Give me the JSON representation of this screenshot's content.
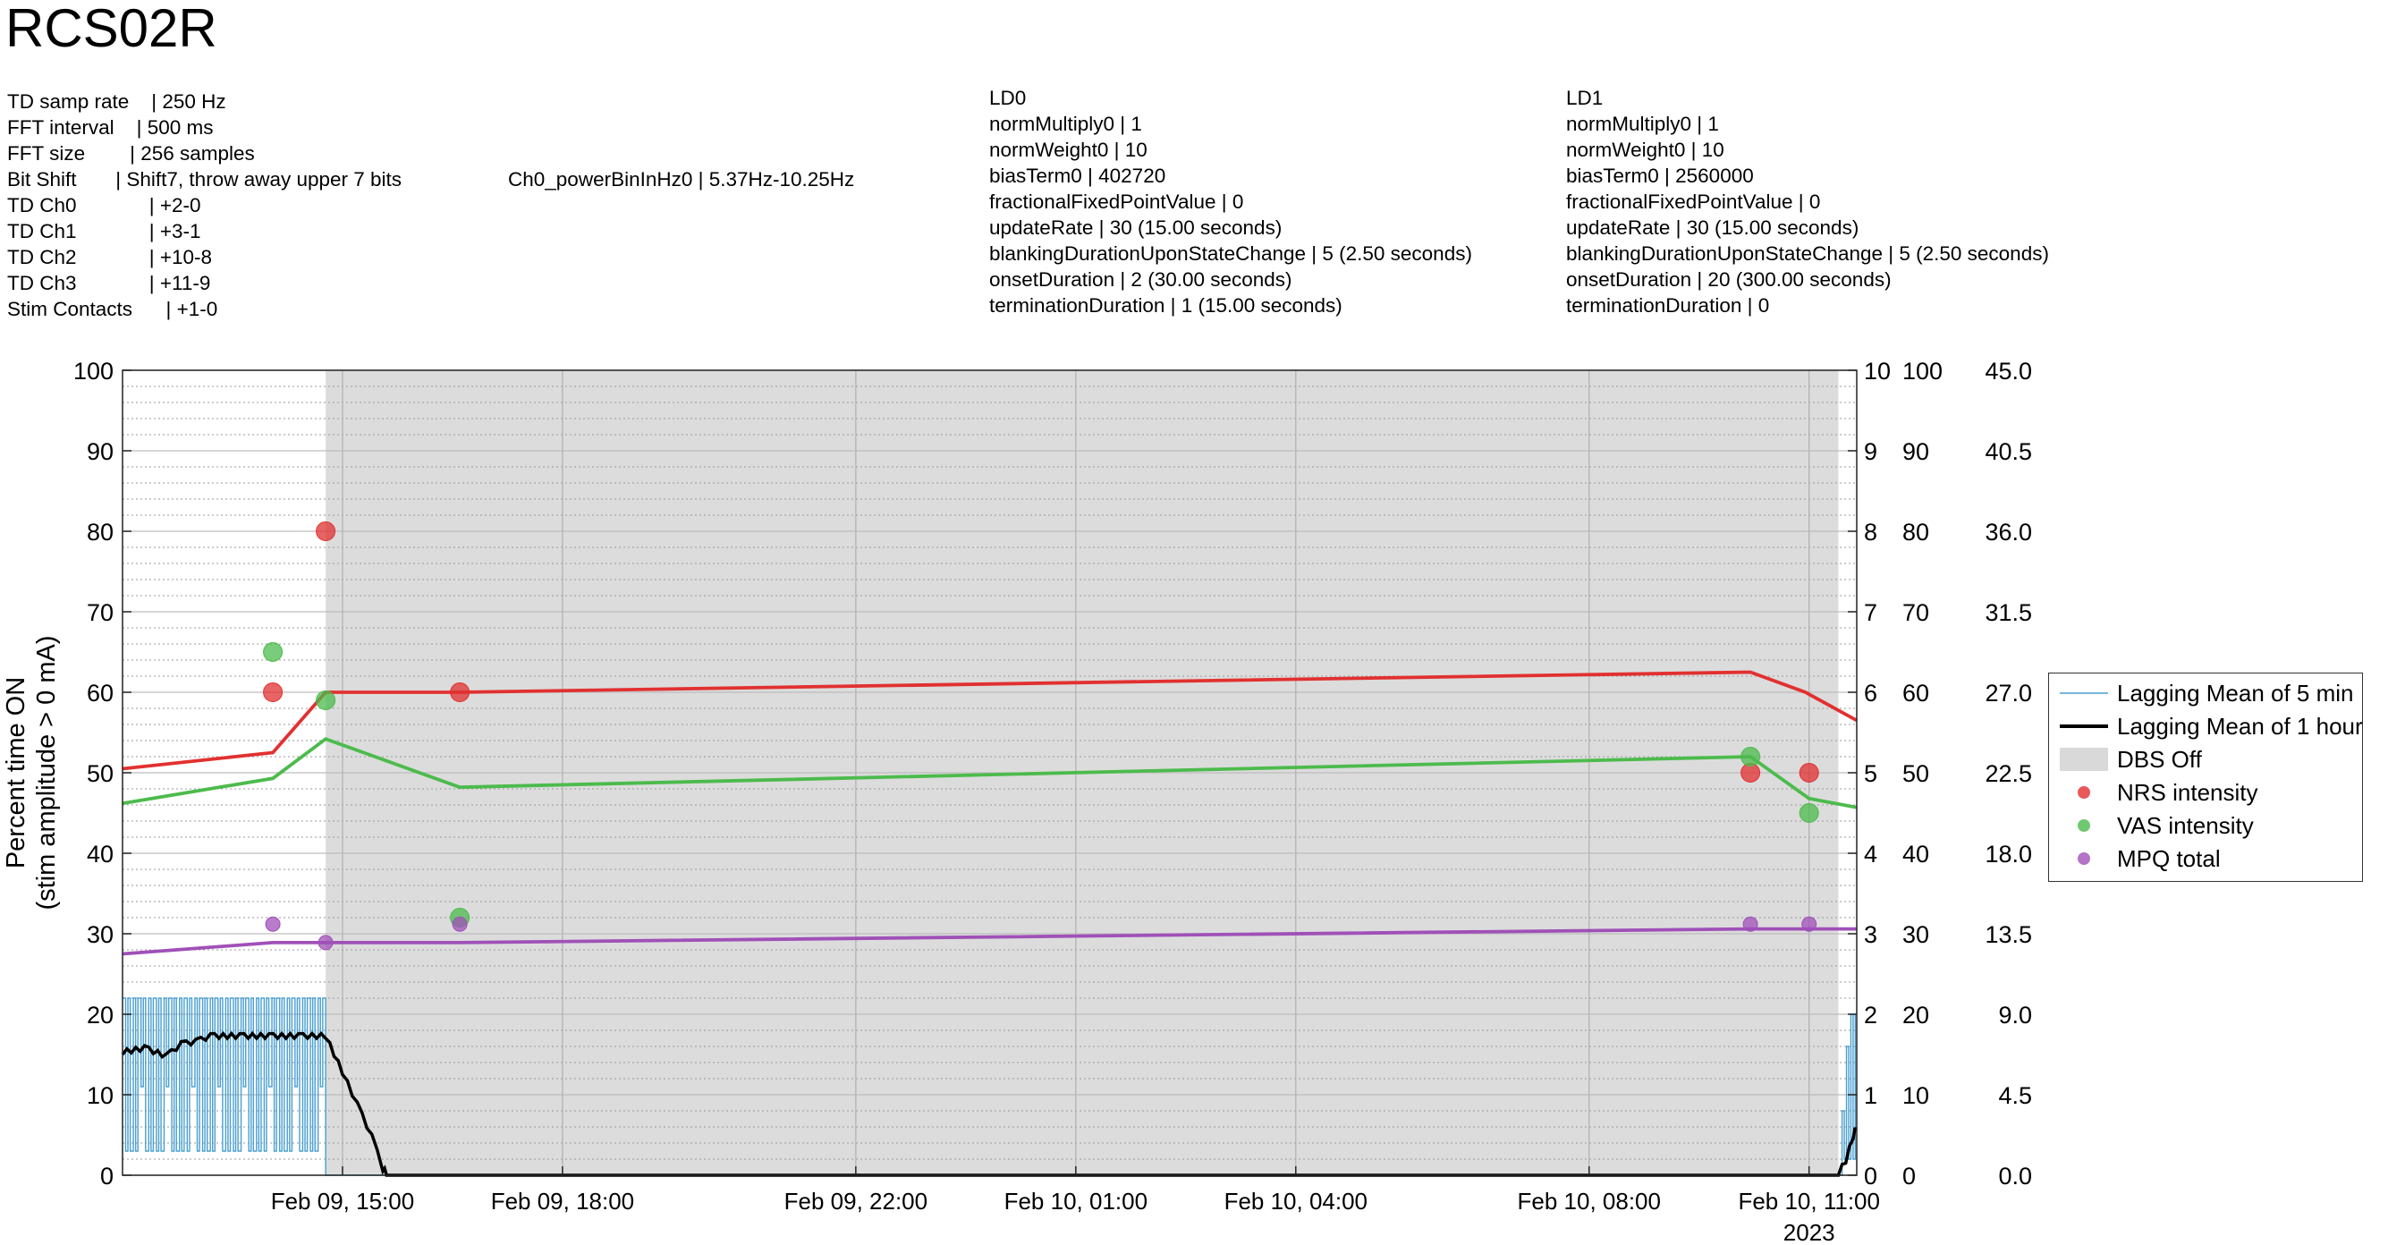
{
  "title": "RCS02R",
  "td_settings": [
    "TD samp rate    | 250 Hz",
    "FFT interval    | 500 ms",
    "FFT size        | 256 samples",
    "Bit Shift       | Shift7, throw away upper 7 bits",
    "TD Ch0             | +2-0",
    "TD Ch1             | +3-1",
    "TD Ch2             | +10-8",
    "TD Ch3             | +11-9",
    "Stim Contacts      | +1-0"
  ],
  "ch0_power": "Ch0_powerBinInHz0 | 5.37Hz-10.25Hz",
  "ld0": [
    "LD0",
    "normMultiply0 | 1",
    "normWeight0 | 10",
    "biasTerm0 | 402720",
    "fractionalFixedPointValue | 0",
    "updateRate | 30 (15.00 seconds)",
    "blankingDurationUponStateChange | 5 (2.50 seconds)",
    "onsetDuration | 2 (30.00 seconds)",
    "terminationDuration | 1 (15.00 seconds)"
  ],
  "ld1": [
    "LD1",
    "normMultiply0 | 1",
    "normWeight0 | 10",
    "biasTerm0 | 2560000",
    "fractionalFixedPointValue | 0",
    "updateRate | 30 (15.00 seconds)",
    "blankingDurationUponStateChange | 5 (2.50 seconds)",
    "onsetDuration | 20 (300.00 seconds)",
    "terminationDuration | 0"
  ],
  "legend": [
    {
      "label": "Lagging Mean of 5 min",
      "symbol": "thin-line",
      "color": "#4a9fd0"
    },
    {
      "label": "Lagging Mean of 1 hour",
      "symbol": "thick-line",
      "color": "#000000"
    },
    {
      "label": "DBS Off",
      "symbol": "patch",
      "color": "#d9d9d9"
    },
    {
      "label": "NRS intensity",
      "symbol": "dot",
      "color": "#e23030"
    },
    {
      "label": "VAS intensity",
      "symbol": "dot",
      "color": "#4cbb4c"
    },
    {
      "label": "MPQ total",
      "symbol": "dot",
      "color": "#a050b8"
    }
  ],
  "chart_data": {
    "type": "line",
    "ylabel": [
      "Percent time ON",
      "(stim amplitude > 0 mA)"
    ],
    "ylim": [
      0,
      100
    ],
    "y_ticks": [
      "0",
      "10",
      "20",
      "30",
      "40",
      "50",
      "60",
      "70",
      "80",
      "90",
      "100"
    ],
    "right_axes": [
      {
        "ticks": [
          "0",
          "1",
          "2",
          "3",
          "4",
          "5",
          "6",
          "7",
          "8",
          "9",
          "10"
        ],
        "ylim": [
          0,
          10
        ]
      },
      {
        "ticks": [
          "0",
          "10",
          "20",
          "30",
          "40",
          "50",
          "60",
          "70",
          "80",
          "90",
          "100"
        ],
        "ylim": [
          0,
          100
        ]
      },
      {
        "ticks": [
          "0.0",
          "4.5",
          "9.0",
          "13.5",
          "18.0",
          "22.5",
          "27.0",
          "31.5",
          "36.0",
          "40.5",
          "45.0"
        ],
        "ylim": [
          0,
          45
        ]
      }
    ],
    "x_range_hours": [
      12.0,
      35.65
    ],
    "x_ticks": [
      {
        "label": "Feb 09, 15:00",
        "hour": 15.0
      },
      {
        "label": "Feb 09, 18:00",
        "hour": 18.0
      },
      {
        "label": "Feb 09, 22:00",
        "hour": 22.0
      },
      {
        "label": "Feb 10, 01:00",
        "hour": 25.0
      },
      {
        "label": "Feb 10, 04:00",
        "hour": 28.0
      },
      {
        "label": "Feb 10, 08:00",
        "hour": 32.0
      },
      {
        "label": "Feb 10, 11:00",
        "hour": 35.0
      }
    ],
    "year_label": "2023",
    "grid": true,
    "legend_position": "right",
    "dbs_off": {
      "start_hour": 14.77,
      "end_hour": 35.4
    },
    "series": [
      {
        "name": "NRS intensity",
        "color": "#e23030",
        "trend": [
          [
            12.0,
            50.5
          ],
          [
            14.05,
            52.5
          ],
          [
            14.77,
            60.0
          ],
          [
            16.6,
            60.0
          ],
          [
            34.2,
            62.5
          ],
          [
            34.95,
            60.0
          ],
          [
            35.65,
            56.5
          ]
        ],
        "points": [
          [
            14.05,
            60
          ],
          [
            14.77,
            80
          ],
          [
            16.6,
            60
          ],
          [
            34.2,
            50
          ],
          [
            35.0,
            50
          ]
        ]
      },
      {
        "name": "VAS intensity",
        "color": "#4cbb4c",
        "trend": [
          [
            12.0,
            46.2
          ],
          [
            14.05,
            49.3
          ],
          [
            14.77,
            54.2
          ],
          [
            16.6,
            48.2
          ],
          [
            34.2,
            52.0
          ],
          [
            35.0,
            46.8
          ],
          [
            35.65,
            45.7
          ]
        ],
        "points": [
          [
            14.05,
            65
          ],
          [
            14.77,
            59
          ],
          [
            16.6,
            32
          ],
          [
            34.2,
            52
          ],
          [
            35.0,
            45
          ]
        ]
      },
      {
        "name": "MPQ total",
        "color": "#a050b8",
        "trend": [
          [
            12.0,
            27.5
          ],
          [
            14.05,
            28.9
          ],
          [
            14.77,
            28.9
          ],
          [
            16.6,
            28.9
          ],
          [
            34.2,
            30.6
          ],
          [
            35.65,
            30.6
          ]
        ],
        "points": [
          [
            14.05,
            31.2
          ],
          [
            14.77,
            28.9
          ],
          [
            16.6,
            31.2
          ],
          [
            34.2,
            31.2
          ],
          [
            35.0,
            31.2
          ]
        ]
      }
    ],
    "lagging_5min": {
      "pattern_start_hour": 12.0,
      "pattern_end_hour": 14.77,
      "period_hours": 0.07,
      "low": 3,
      "high": 22,
      "resume_start_hour": 35.45,
      "resume_end_hour": 35.65,
      "resume_max": 20
    },
    "lagging_1hour": [
      [
        12.0,
        15
      ],
      [
        12.3,
        15.5
      ],
      [
        12.6,
        14.5
      ],
      [
        12.8,
        16
      ],
      [
        13.0,
        16.3
      ],
      [
        13.2,
        17
      ],
      [
        13.6,
        17
      ],
      [
        14.0,
        17
      ],
      [
        14.4,
        17
      ],
      [
        14.77,
        17
      ],
      [
        15.0,
        12.5
      ],
      [
        15.2,
        8.5
      ],
      [
        15.4,
        4.5
      ],
      [
        15.55,
        0.5
      ],
      [
        15.6,
        0
      ],
      [
        35.4,
        0
      ],
      [
        35.5,
        1.5
      ],
      [
        35.6,
        4.5
      ],
      [
        35.65,
        5.8
      ]
    ]
  }
}
